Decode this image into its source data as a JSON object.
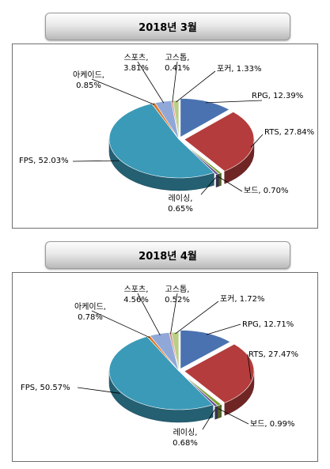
{
  "colors": {
    "RPG": "#4a72b0",
    "RTS": "#b43c3c",
    "보드": "#7fa23a",
    "레이싱": "#5e4a8a",
    "FPS": "#3a9ab8",
    "아케이드": "#d9792c",
    "스포츠": "#90a8d8",
    "고스톱": "#d98a88",
    "포커": "#b9cf86"
  },
  "chart_data": [
    {
      "type": "pie",
      "title": "2018년 3월",
      "slices": [
        {
          "label": "RPG",
          "value": 12.39,
          "text": "RPG, 12.39%"
        },
        {
          "label": "RTS",
          "value": 27.84,
          "text": "RTS, 27.84%"
        },
        {
          "label": "보드",
          "value": 0.7,
          "text": "보드, 0.70%"
        },
        {
          "label": "레이싱",
          "value": 0.65,
          "text1": "레이싱,",
          "text2": "0.65%"
        },
        {
          "label": "FPS",
          "value": 52.03,
          "text": "FPS, 52.03%"
        },
        {
          "label": "아케이드",
          "value": 0.85,
          "text1": "아케이드,",
          "text2": "0.85%"
        },
        {
          "label": "스포츠",
          "value": 3.81,
          "text1": "스포츠,",
          "text2": "3.81%"
        },
        {
          "label": "고스톱",
          "value": 0.41,
          "text1": "고스톱,",
          "text2": "0.41%"
        },
        {
          "label": "포커",
          "value": 1.33,
          "text": "포커, 1.33%"
        }
      ]
    },
    {
      "type": "pie",
      "title": "2018년 4월",
      "slices": [
        {
          "label": "RPG",
          "value": 12.71,
          "text": "RPG, 12.71%"
        },
        {
          "label": "RTS",
          "value": 27.47,
          "text": "RTS, 27.47%"
        },
        {
          "label": "보드",
          "value": 0.99,
          "text": "보드, 0.99%"
        },
        {
          "label": "레이싱",
          "value": 0.68,
          "text1": "레이싱,",
          "text2": "0.68%"
        },
        {
          "label": "FPS",
          "value": 50.57,
          "text": "FPS, 50.57%"
        },
        {
          "label": "아케이드",
          "value": 0.78,
          "text1": "아케이드,",
          "text2": "0.78%"
        },
        {
          "label": "스포츠",
          "value": 4.56,
          "text1": "스포츠,",
          "text2": "4.56%"
        },
        {
          "label": "고스톱",
          "value": 0.52,
          "text1": "고스톱,",
          "text2": "0.52%"
        },
        {
          "label": "포커",
          "value": 1.72,
          "text": "포커, 1.72%"
        }
      ]
    }
  ]
}
